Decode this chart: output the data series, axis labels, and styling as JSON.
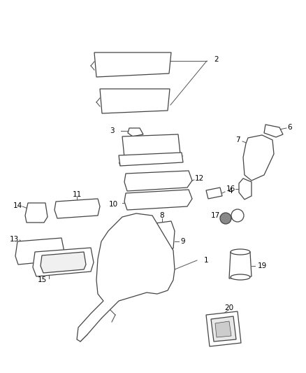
{
  "background_color": "#ffffff",
  "fig_width": 4.38,
  "fig_height": 5.33,
  "dpi": 100,
  "line_color": "#555555",
  "text_color": "#000000",
  "part_color": "#444444",
  "label_fontsize": 7.5
}
